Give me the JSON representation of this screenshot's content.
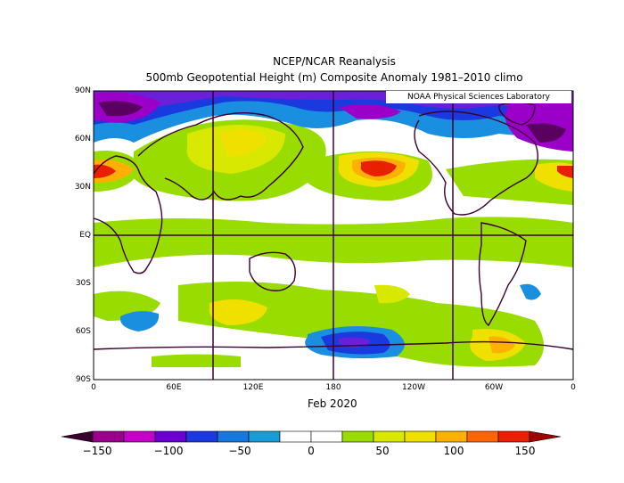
{
  "title_line1": "NCEP/NCAR Reanalysis",
  "title_line2": "500mb Geopotential Height (m) Composite Anomaly 1981–2010 climo",
  "credit": "NOAA Physical Sciences Laboratory",
  "date_label": "Feb 2020",
  "lat_labels": [
    "90N",
    "60N",
    "30N",
    "EQ",
    "30S",
    "60S",
    "90S"
  ],
  "lon_labels": [
    "0",
    "60E",
    "120E",
    "180",
    "120W",
    "60W",
    "0"
  ],
  "colorbar": {
    "labels": [
      "−150",
      "−100",
      "−50",
      "0",
      "50",
      "100",
      "150"
    ],
    "colors": [
      "#3a0030",
      "#9a008c",
      "#c600c8",
      "#6a00cf",
      "#1a3adf",
      "#1478e0",
      "#189cd8",
      "#ffffff",
      "#ffffff",
      "#98dc00",
      "#d8e800",
      "#f0e000",
      "#ffb000",
      "#ff6600",
      "#e82000",
      "#a00000"
    ]
  },
  "anomaly_colors": {
    "neg_strong": "#5a0060",
    "neg_purple": "#9a00c8",
    "neg_violet": "#6a20d8",
    "neg_blue": "#1a3adf",
    "neg_lightblue": "#1a8fe0",
    "pos_green": "#98dc00",
    "pos_yellowgreen": "#d8e800",
    "pos_yellow": "#f0e000",
    "pos_orange": "#ffb000",
    "pos_red": "#e82000"
  }
}
